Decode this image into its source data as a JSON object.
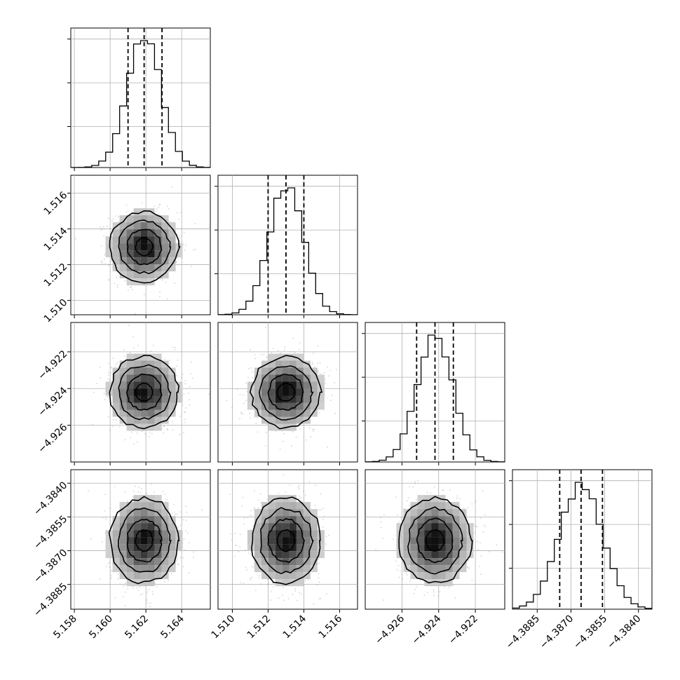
{
  "chart_data": {
    "type": "corner",
    "parameters": [
      {
        "mean": 5.1619,
        "sigma": 0.00095,
        "range": [
          5.1578,
          5.1656
        ],
        "quantiles": [
          5.161,
          5.1619,
          5.1629
        ],
        "ticks": [
          5.158,
          5.16,
          5.162,
          5.164
        ],
        "tick_labels": [
          "5.158",
          "5.160",
          "5.162",
          "5.164"
        ]
      },
      {
        "mean": 1.513,
        "sigma": 0.00097,
        "range": [
          1.5092,
          1.517
        ],
        "quantiles": [
          1.512,
          1.513,
          1.514
        ],
        "ticks": [
          1.51,
          1.512,
          1.514,
          1.516
        ],
        "tick_labels": [
          "1.510",
          "1.512",
          "1.514",
          "1.516"
        ]
      },
      {
        "mean": -4.9242,
        "sigma": 0.00097,
        "range": [
          -4.928,
          -4.9204
        ],
        "quantiles": [
          -4.9252,
          -4.9242,
          -4.9232
        ],
        "ticks": [
          -4.926,
          -4.924,
          -4.922
        ],
        "tick_labels": [
          "−4.926",
          "−4.924",
          "−4.922"
        ]
      },
      {
        "mean": -4.38655,
        "sigma": 0.00095,
        "range": [
          -4.3896,
          -4.3834
        ],
        "quantiles": [
          -4.3875,
          -4.38655,
          -4.3856
        ],
        "ticks": [
          -4.3885,
          -4.387,
          -4.3855,
          -4.384
        ],
        "tick_labels": [
          "−4.3885",
          "−4.3870",
          "−4.3855",
          "−4.3840"
        ]
      }
    ],
    "histogram_bins": 20,
    "quantile_levels": [
      0.16,
      0.5,
      0.84
    ],
    "contour_levels_sigma": [
      0.5,
      1.0,
      1.5,
      2.0
    ],
    "grid": true
  }
}
